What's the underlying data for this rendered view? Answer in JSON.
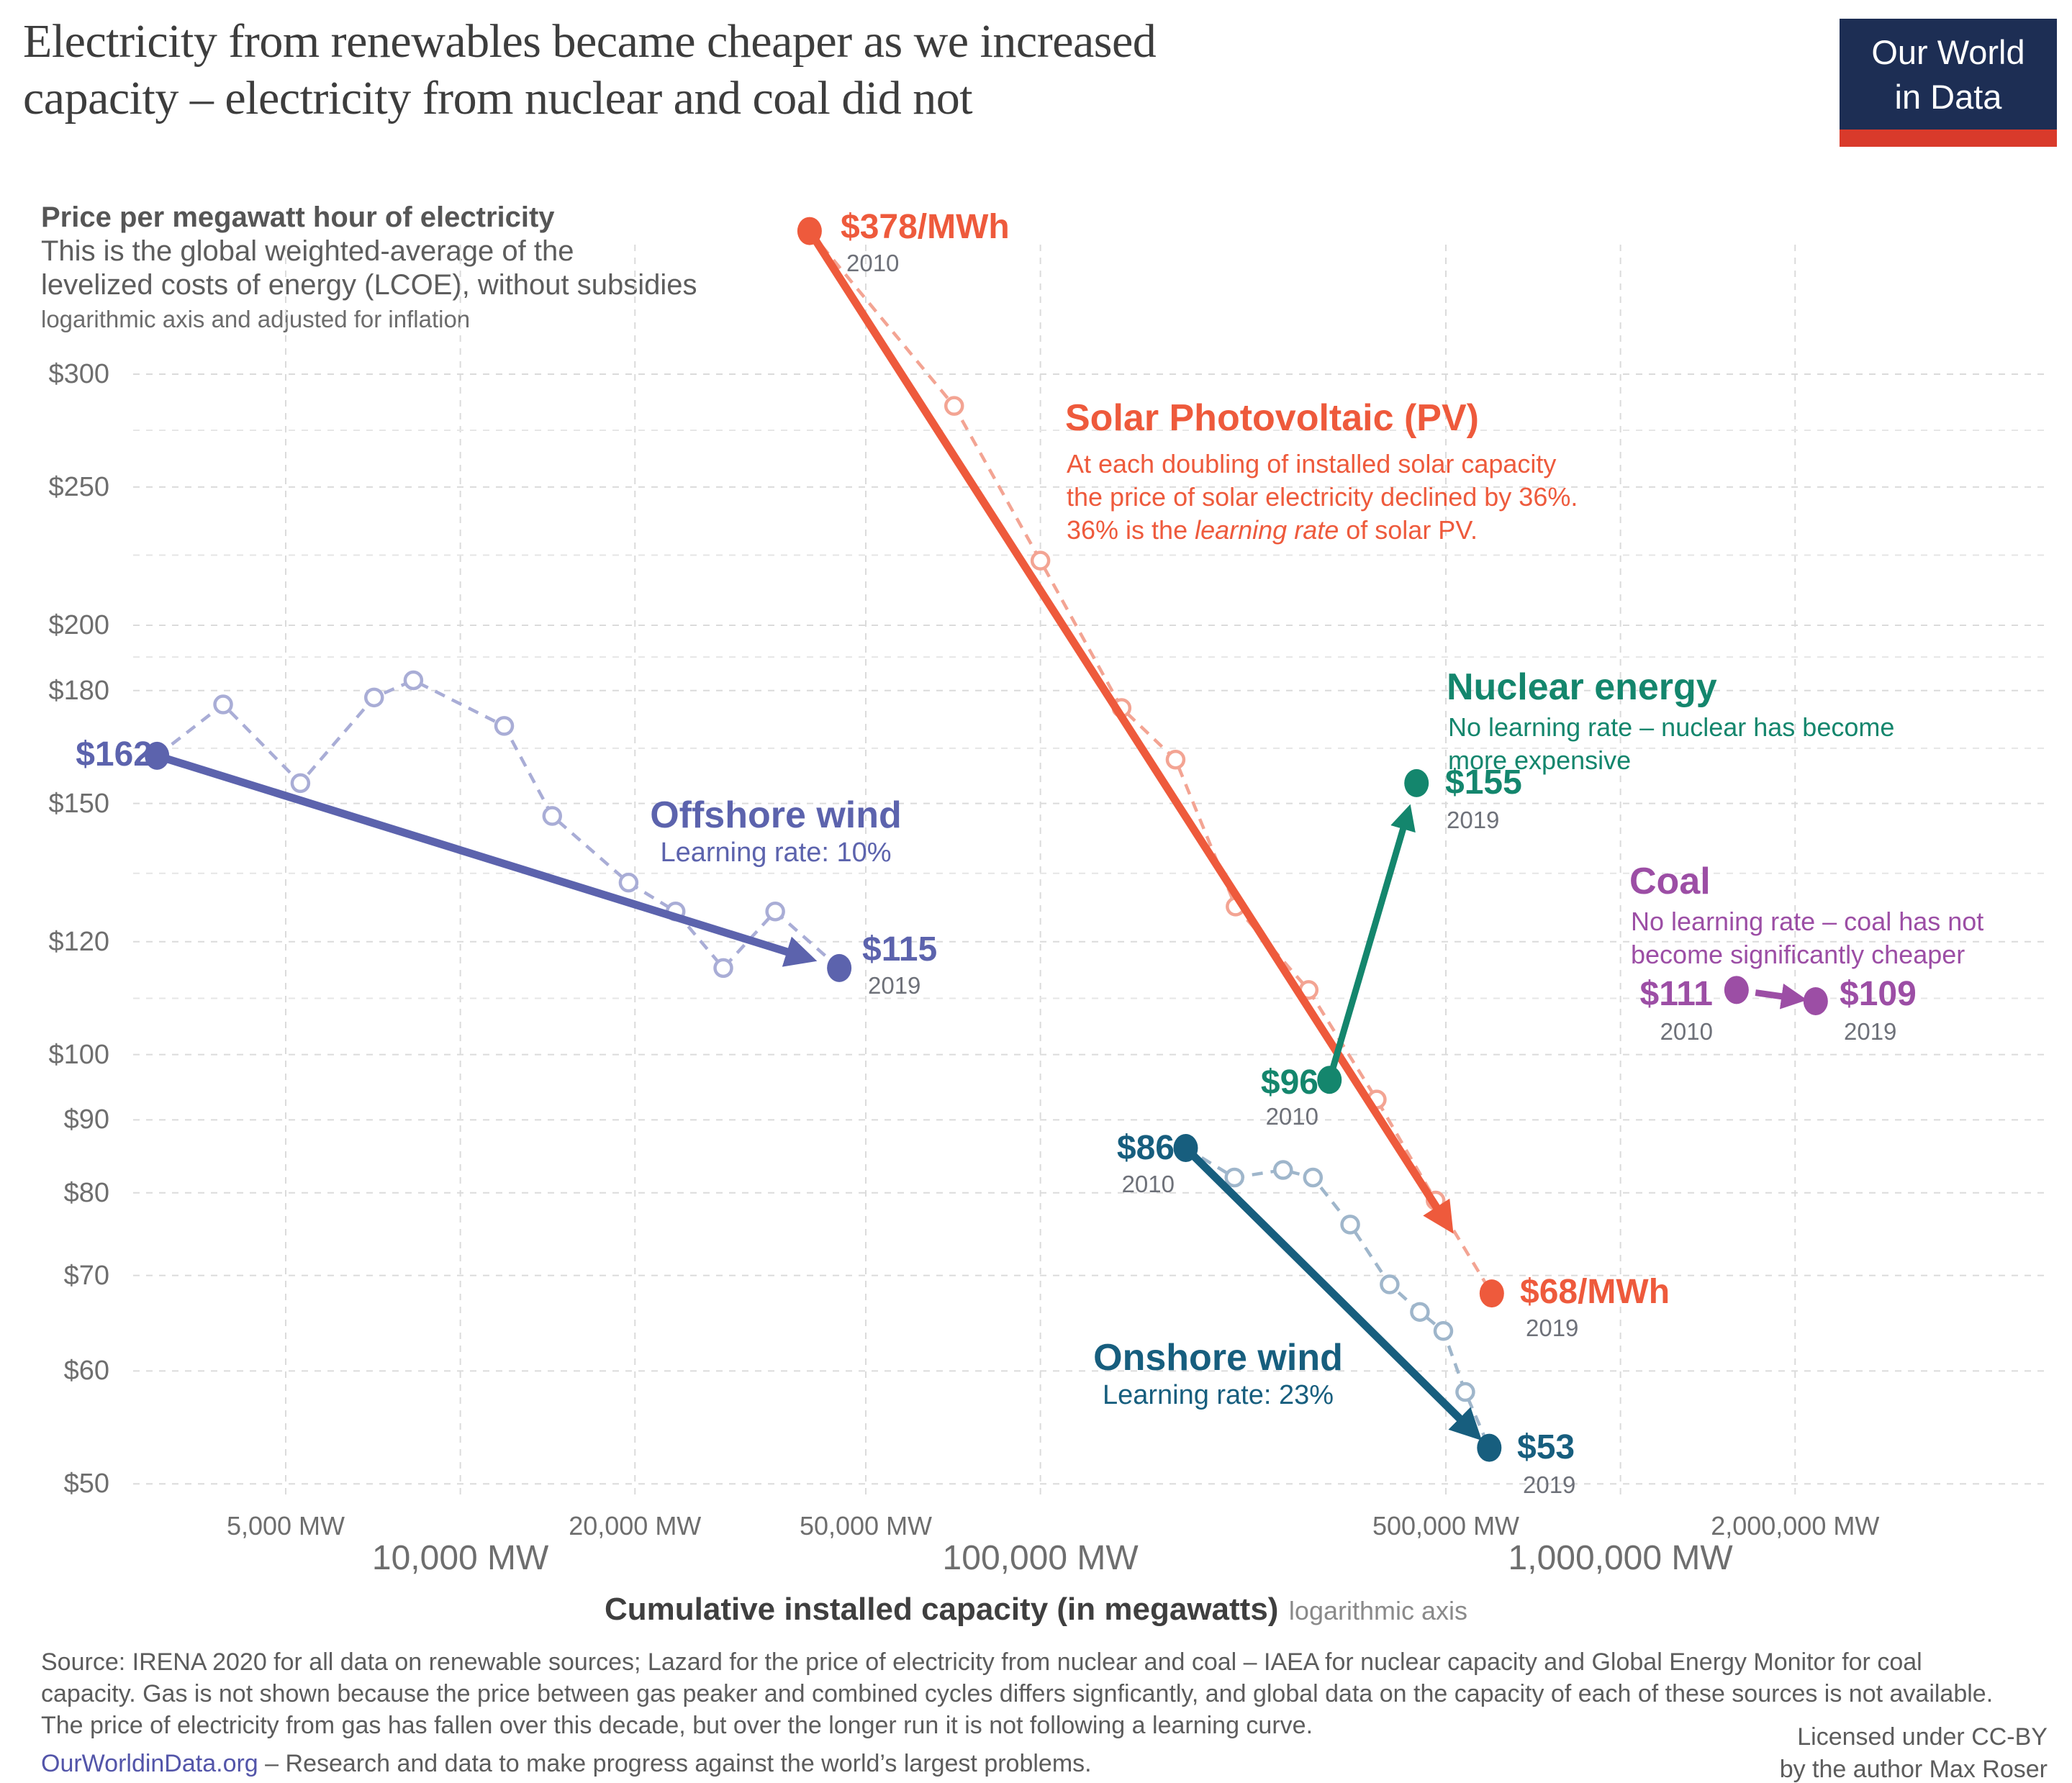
{
  "header": {
    "title_line1": "Electricity from renewables became cheaper as we increased",
    "title_line2": "capacity – electricity from nuclear and coal did not",
    "logo_line1": "Our World",
    "logo_line2": "in Data",
    "logo_bg": "#1d2e54",
    "logo_stripe": "#d93a2b"
  },
  "subtitle": {
    "bold": "Price per megawatt hour of electricity",
    "line2": "This is the global weighted-average of the",
    "line3": "levelized costs of energy (LCOE), without subsidies",
    "note": "logarithmic axis and adjusted for inflation"
  },
  "chart_data": {
    "type": "scatter",
    "title": "Electricity from renewables became cheaper as we increased capacity – electricity from nuclear and coal did not",
    "ylabel": "Price per megawatt hour of electricity",
    "xlabel": "Cumulative installed capacity (in megawatts)",
    "xlabel_note": "logarithmic axis",
    "x_scale": "log",
    "y_scale": "log",
    "xlim": [
      2400,
      3500000
    ],
    "ylim": [
      48,
      400
    ],
    "grid": true,
    "y_ticks": [
      {
        "value": 300,
        "label": "$300"
      },
      {
        "value": 250,
        "label": "$250"
      },
      {
        "value": 200,
        "label": "$200"
      },
      {
        "value": 180,
        "label": "$180"
      },
      {
        "value": 150,
        "label": "$150"
      },
      {
        "value": 120,
        "label": "$120"
      },
      {
        "value": 100,
        "label": "$100"
      },
      {
        "value": 90,
        "label": "$90"
      },
      {
        "value": 80,
        "label": "$80"
      },
      {
        "value": 70,
        "label": "$70"
      },
      {
        "value": 60,
        "label": "$60"
      },
      {
        "value": 50,
        "label": "$50"
      }
    ],
    "y_minor_gridlines": [
      274,
      224,
      190,
      164,
      134,
      109.5
    ],
    "x_ticks": [
      {
        "value": 5000,
        "label": "5,000 MW",
        "major": false
      },
      {
        "value": 10000,
        "label": "10,000 MW",
        "major": true
      },
      {
        "value": 20000,
        "label": "20,000 MW",
        "major": false
      },
      {
        "value": 50000,
        "label": "50,000 MW",
        "major": false
      },
      {
        "value": 100000,
        "label": "100,000 MW",
        "major": true
      },
      {
        "value": 500000,
        "label": "500,000 MW",
        "major": false
      },
      {
        "value": 1000000,
        "label": "1,000,000 MW",
        "major": true
      },
      {
        "value": 2000000,
        "label": "2,000,000 MW",
        "major": false
      }
    ],
    "series": [
      {
        "key": "solar",
        "name": "Solar Photovoltaic (PV)",
        "color": "#ee5a3c",
        "light_color": "#f3a493",
        "learning_rate": "36%",
        "trend_arrow": {
          "from": [
            40000,
            378
          ],
          "to": [
            600000,
            68
          ]
        },
        "points": [
          [
            40000,
            378
          ],
          [
            71000,
            285
          ],
          [
            100000,
            222
          ],
          [
            138000,
            175
          ],
          [
            171000,
            161
          ],
          [
            217000,
            127
          ],
          [
            290000,
            111
          ],
          [
            380000,
            93
          ],
          [
            480000,
            79
          ],
          [
            600000,
            68
          ]
        ],
        "start_label": "$378/MWh",
        "start_year": "2010",
        "end_label": "$68/MWh",
        "end_year": "2019",
        "annotation_heading": "Solar Photovoltaic (PV)",
        "annotation_line1": "At each doubling of installed solar capacity",
        "annotation_line2": "the price of solar electricity declined by 36%.",
        "annotation_line3_pre": "36% is the ",
        "annotation_line3_italic": "learning rate",
        "annotation_line3_post": " of solar PV."
      },
      {
        "key": "offshore",
        "name": "Offshore wind",
        "color": "#5c63ad",
        "light_color": "#a9add6",
        "learning_rate": "10%",
        "trend_arrow": {
          "from": [
            3000,
            162
          ],
          "to": [
            45000,
            115
          ]
        },
        "points": [
          [
            3000,
            162
          ],
          [
            3900,
            176
          ],
          [
            5300,
            155
          ],
          [
            7100,
            178
          ],
          [
            8300,
            183
          ],
          [
            11900,
            170
          ],
          [
            14400,
            147
          ],
          [
            19500,
            132
          ],
          [
            23500,
            126
          ],
          [
            28400,
            115
          ],
          [
            34900,
            126
          ],
          [
            45000,
            115
          ]
        ],
        "start_label": "$162",
        "start_year": "",
        "end_label": "$115",
        "end_year": "2019",
        "annotation_heading": "Offshore wind",
        "annotation_sub": "Learning rate: 10%"
      },
      {
        "key": "onshore",
        "name": "Onshore wind",
        "color": "#175e7e",
        "light_color": "#9fb6cb",
        "learning_rate": "23%",
        "trend_arrow": {
          "from": [
            178000,
            86
          ],
          "to": [
            594000,
            53
          ]
        },
        "points": [
          [
            178000,
            86
          ],
          [
            216000,
            82
          ],
          [
            262000,
            83
          ],
          [
            295000,
            82
          ],
          [
            342000,
            76
          ],
          [
            400000,
            69
          ],
          [
            451000,
            66
          ],
          [
            495000,
            64
          ],
          [
            540000,
            58
          ],
          [
            594000,
            53
          ]
        ],
        "start_label": "$86",
        "start_year": "2010",
        "end_label": "$53",
        "end_year": "2019",
        "annotation_heading": "Onshore wind",
        "annotation_sub": "Learning rate: 23%"
      },
      {
        "key": "nuclear",
        "name": "Nuclear energy",
        "color": "#14866d",
        "light_color": "#14866d",
        "learning_rate": "none",
        "trend_arrow": {
          "from": [
            315000,
            96
          ],
          "to": [
            445000,
            155
          ]
        },
        "points": [
          [
            315000,
            96
          ],
          [
            445000,
            155
          ]
        ],
        "start_label": "$96",
        "start_year": "2010",
        "end_label": "$155",
        "end_year": "2019",
        "annotation_heading": "Nuclear energy",
        "annotation_line1": "No learning rate – nuclear has become",
        "annotation_line2": "more expensive"
      },
      {
        "key": "coal",
        "name": "Coal",
        "color": "#9c4ea5",
        "light_color": "#9c4ea5",
        "learning_rate": "none",
        "trend_arrow": {
          "from": [
            1585000,
            111
          ],
          "to": [
            2170000,
            109
          ]
        },
        "points": [
          [
            1585000,
            111
          ],
          [
            2170000,
            109
          ]
        ],
        "start_label": "$111",
        "start_year": "2010",
        "end_label": "$109",
        "end_year": "2019",
        "annotation_heading": "Coal",
        "annotation_line1": "No learning rate – coal has not",
        "annotation_line2": "become significantly cheaper"
      }
    ]
  },
  "footer": {
    "source": "Source: IRENA 2020 for all data on renewable sources; Lazard for the price of electricity from nuclear and coal – IAEA for nuclear capacity and Global Energy Monitor for coal capacity. Gas is not shown because the price between gas peaker and combined cycles differs signficantly, and global data on the capacity of each of these sources is not available. The price of electricity from gas has fallen over this decade, but over the longer run it is not following a learning curve.",
    "link": "OurWorldinData.org",
    "tagline": " – Research and data to make progress against the world’s largest problems.",
    "license_line1": "Licensed under CC-BY",
    "license_line2": "by the author Max Roser"
  }
}
